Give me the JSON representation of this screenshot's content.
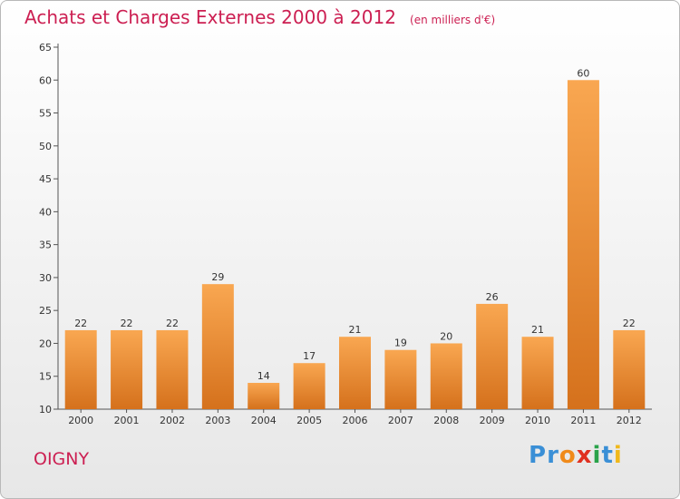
{
  "title": "Achats et Charges Externes 2000 à 2012",
  "subtitle": "(en milliers d'€)",
  "commune": "OIGNY",
  "logo_text": "Proxiti",
  "colors": {
    "accent": "#cc1f52",
    "bar_light": "#f8a44e",
    "bar_dark": "#d9731a",
    "axis": "#444444"
  },
  "chart_data": {
    "type": "bar",
    "categories": [
      "2000",
      "2001",
      "2002",
      "2003",
      "2004",
      "2005",
      "2006",
      "2007",
      "2008",
      "2009",
      "2010",
      "2011",
      "2012"
    ],
    "values": [
      22,
      22,
      22,
      29,
      14,
      17,
      21,
      19,
      20,
      26,
      21,
      60,
      22
    ],
    "ylim": [
      10,
      65
    ],
    "yticks": [
      10,
      15,
      20,
      25,
      30,
      35,
      40,
      45,
      50,
      55,
      60,
      65
    ],
    "grid": false,
    "data_labels": true
  }
}
